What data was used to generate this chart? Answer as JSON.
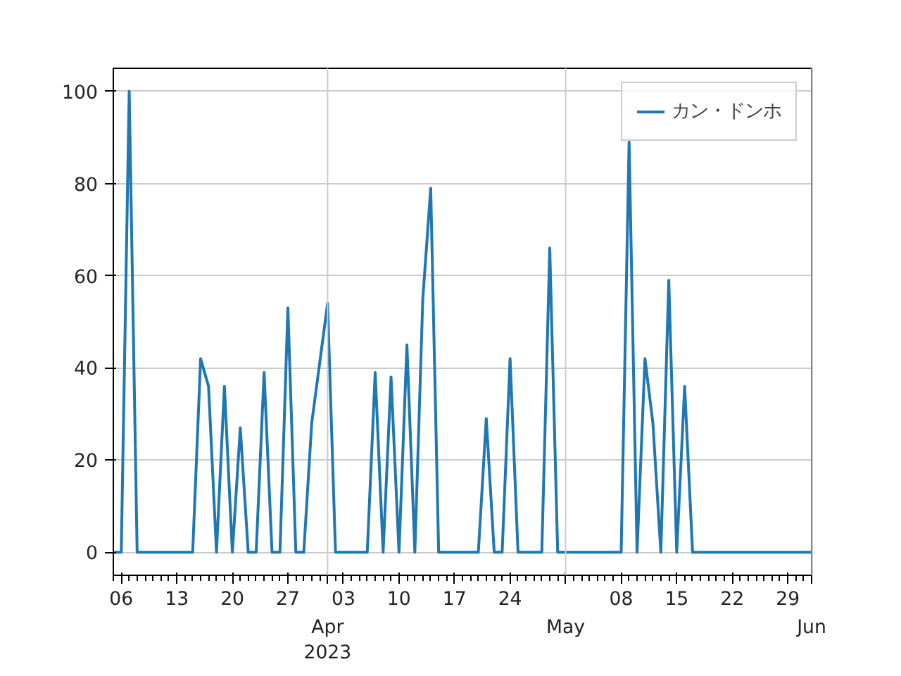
{
  "chart_data": {
    "type": "line",
    "x": [
      "2023-03-05",
      "2023-03-06",
      "2023-03-07",
      "2023-03-08",
      "2023-03-09",
      "2023-03-10",
      "2023-03-11",
      "2023-03-12",
      "2023-03-13",
      "2023-03-14",
      "2023-03-15",
      "2023-03-16",
      "2023-03-17",
      "2023-03-18",
      "2023-03-19",
      "2023-03-20",
      "2023-03-21",
      "2023-03-22",
      "2023-03-23",
      "2023-03-24",
      "2023-03-25",
      "2023-03-26",
      "2023-03-27",
      "2023-03-28",
      "2023-03-29",
      "2023-03-30",
      "2023-03-31",
      "2023-04-01",
      "2023-04-02",
      "2023-04-03",
      "2023-04-04",
      "2023-04-05",
      "2023-04-06",
      "2023-04-07",
      "2023-04-08",
      "2023-04-09",
      "2023-04-10",
      "2023-04-11",
      "2023-04-12",
      "2023-04-13",
      "2023-04-14",
      "2023-04-15",
      "2023-04-16",
      "2023-04-17",
      "2023-04-18",
      "2023-04-19",
      "2023-04-20",
      "2023-04-21",
      "2023-04-22",
      "2023-04-23",
      "2023-04-24",
      "2023-04-25",
      "2023-04-26",
      "2023-04-27",
      "2023-04-28",
      "2023-04-29",
      "2023-04-30",
      "2023-05-01",
      "2023-05-02",
      "2023-05-03",
      "2023-05-04",
      "2023-05-05",
      "2023-05-06",
      "2023-05-07",
      "2023-05-08",
      "2023-05-09",
      "2023-05-10",
      "2023-05-11",
      "2023-05-12",
      "2023-05-13",
      "2023-05-14",
      "2023-05-15",
      "2023-05-16",
      "2023-05-17",
      "2023-05-18",
      "2023-05-19",
      "2023-05-20",
      "2023-05-21",
      "2023-05-22",
      "2023-05-23",
      "2023-05-24",
      "2023-05-25",
      "2023-05-26",
      "2023-05-27",
      "2023-05-28",
      "2023-05-29",
      "2023-05-30",
      "2023-05-31",
      "2023-06-01"
    ],
    "series": [
      {
        "name": "カン・ドンホ",
        "color": "#1f77b4",
        "values": [
          0,
          0,
          100,
          0,
          0,
          0,
          0,
          0,
          0,
          0,
          0,
          42,
          36,
          0,
          36,
          0,
          27,
          0,
          0,
          39,
          0,
          0,
          53,
          0,
          0,
          28,
          41,
          54,
          0,
          0,
          0,
          0,
          0,
          39,
          0,
          38,
          0,
          45,
          0,
          55,
          79,
          0,
          0,
          0,
          0,
          0,
          0,
          29,
          0,
          0,
          42,
          0,
          0,
          0,
          0,
          66,
          0,
          0,
          0,
          0,
          0,
          0,
          0,
          0,
          0,
          89,
          0,
          42,
          28,
          0,
          59,
          0,
          36,
          0,
          0,
          0,
          0,
          0,
          0,
          0,
          0,
          0,
          0,
          0,
          0,
          0,
          0,
          0,
          0
        ]
      }
    ],
    "xlim": [
      "2023-03-05",
      "2023-06-01"
    ],
    "xticks": [
      {
        "value": "2023-03-06",
        "label": "06"
      },
      {
        "value": "2023-03-13",
        "label": "13"
      },
      {
        "value": "2023-03-20",
        "label": "20"
      },
      {
        "value": "2023-03-27",
        "label": "27"
      },
      {
        "value": "2023-04-01",
        "label": null
      },
      {
        "value": "2023-04-03",
        "label": "03"
      },
      {
        "value": "2023-04-10",
        "label": "10"
      },
      {
        "value": "2023-04-17",
        "label": "17"
      },
      {
        "value": "2023-04-24",
        "label": "24"
      },
      {
        "value": "2023-05-01",
        "label": null
      },
      {
        "value": "2023-05-08",
        "label": "08"
      },
      {
        "value": "2023-05-15",
        "label": "15"
      },
      {
        "value": "2023-05-22",
        "label": "22"
      },
      {
        "value": "2023-05-29",
        "label": "29"
      },
      {
        "value": "2023-06-01",
        "label": null
      }
    ],
    "annotations": [
      "Apr\n2023",
      "May",
      "Jun"
    ],
    "ylim": [
      -5,
      105
    ],
    "yticks": [
      0,
      20,
      40,
      60,
      80,
      100
    ],
    "grid": true,
    "legend": "top right"
  }
}
